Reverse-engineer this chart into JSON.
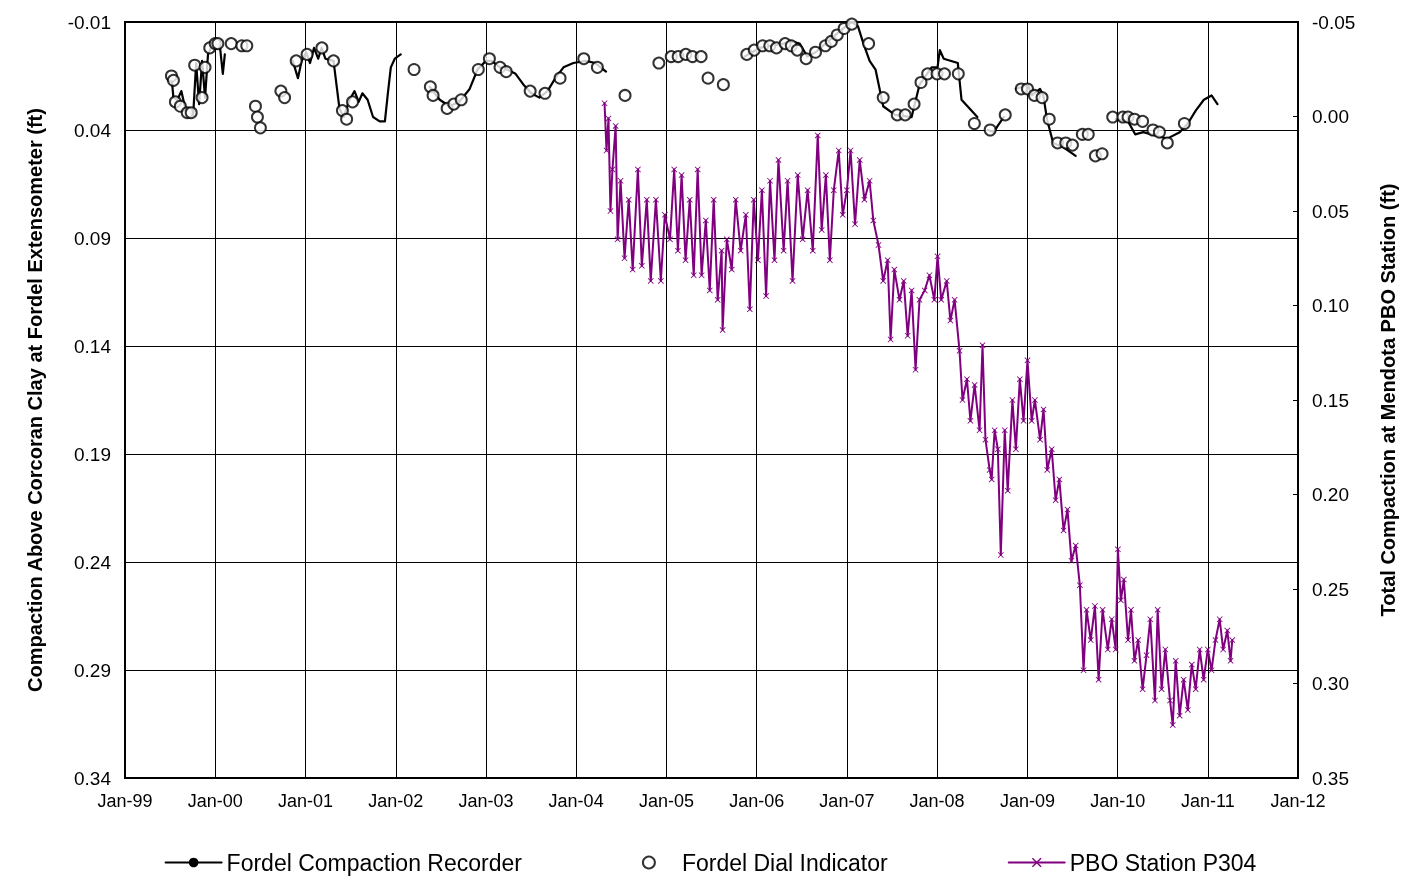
{
  "chart_data": {
    "type": "line",
    "ylabel": "Compaction Above Corcoran Clay at Fordel Extensometer (ft)",
    "y2label": "Total Compaction at Mendota PBO Station (ft)",
    "xlim": [
      "1999-01",
      "2012-01"
    ],
    "xticks": [
      {
        "value": "1999-01",
        "label": "Jan-99"
      },
      {
        "value": "2000-01",
        "label": "Jan-00"
      },
      {
        "value": "2001-01",
        "label": "Jan-01"
      },
      {
        "value": "2002-01",
        "label": "Jan-02"
      },
      {
        "value": "2003-01",
        "label": "Jan-03"
      },
      {
        "value": "2004-01",
        "label": "Jan-04"
      },
      {
        "value": "2005-01",
        "label": "Jan-05"
      },
      {
        "value": "2006-01",
        "label": "Jan-06"
      },
      {
        "value": "2007-01",
        "label": "Jan-07"
      },
      {
        "value": "2008-01",
        "label": "Jan-08"
      },
      {
        "value": "2009-01",
        "label": "Jan-09"
      },
      {
        "value": "2010-01",
        "label": "Jan-10"
      },
      {
        "value": "2011-01",
        "label": "Jan-11"
      },
      {
        "value": "2012-01",
        "label": "Jan-12"
      }
    ],
    "ylim": [
      0.34,
      -0.01
    ],
    "yticks": [
      -0.01,
      0.04,
      0.09,
      0.14,
      0.19,
      0.24,
      0.29,
      0.34
    ],
    "y2lim": [
      0.35,
      -0.05
    ],
    "y2ticks": [
      -0.05,
      {
        "value": 0,
        "label": "0.00"
      },
      0.05,
      {
        "value": 0.1,
        "label": "0.10"
      },
      0.15,
      {
        "value": 0.2,
        "label": "0.20"
      },
      0.25,
      {
        "value": 0.3,
        "label": "0.30"
      },
      0.35
    ],
    "grid": true,
    "legend": "bottom",
    "series": [
      {
        "name": "Fordel Compaction Recorder",
        "marker": "none",
        "color": "#000000",
        "x": [
          "1999-07-08",
          "1999-07-16",
          "1999-08-01",
          "1999-08-17",
          "1999-09-02",
          "1999-09-22",
          "1999-10-04",
          "1999-10-16",
          "1999-10-28",
          "1999-11-09",
          "1999-11-21",
          "1999-12-03",
          "1999-12-19",
          "2000-01-04",
          "2000-01-20",
          "2000-02-01",
          "2000-02-09",
          "2000-06-01",
          "2000-11-10",
          "2000-12-01",
          "2000-12-16",
          "2001-01-03",
          "2001-01-19",
          "2001-02-04",
          "2001-02-21",
          "2001-03-07",
          "2001-03-22",
          "2001-04-24",
          "2001-05-18",
          "2001-06-04",
          "2001-06-28",
          "2001-07-18",
          "2001-08-04",
          "2001-08-19",
          "2001-09-09",
          "2001-10-01",
          "2001-10-28",
          "2001-11-18",
          "2001-12-01",
          "2001-12-12",
          "2001-12-28",
          "2002-01-21",
          "2002-03-01",
          "2002-05-18",
          "2002-06-28",
          "2002-08-06",
          "2002-09-15",
          "2002-10-27",
          "2002-11-28",
          "2003-01-01",
          "2003-01-24",
          "2003-02-27",
          "2003-03-28",
          "2003-05-01",
          "2003-06-02",
          "2003-07-04",
          "2003-08-05",
          "2003-09-07",
          "2003-10-09",
          "2003-11-11",
          "2003-12-21",
          "2004-02-08",
          "2004-03-19",
          "2004-05-01",
          "2005-01-01",
          "2005-11-13",
          "2006-01-13",
          "2006-03-01",
          "2006-04-19",
          "2006-05-21",
          "2006-06-24",
          "2006-07-25",
          "2006-08-27",
          "2006-10-06",
          "2006-11-16",
          "2006-12-27",
          "2007-01-21",
          "2007-02-15",
          "2007-03-09",
          "2007-04-03",
          "2007-04-27",
          "2007-05-28",
          "2007-07-15",
          "2007-09-20",
          "2007-10-22",
          "2007-12-10",
          "2008-01-03",
          "2008-01-12",
          "2008-01-28",
          "2008-03-25",
          "2008-04-09",
          "2008-05-19",
          "2008-06-12",
          "2008-07-10",
          "2008-07-24",
          "2008-08-18",
          "2008-09-03",
          "2008-09-27",
          "2008-10-20",
          "2008-11-15",
          "2009-01-03",
          "2009-01-18",
          "2009-02-21",
          "2009-03-06",
          "2009-03-21",
          "2009-04-15",
          "2009-05-27",
          "2009-07-15",
          "2009-10-01",
          "2009-12-24",
          "2010-02-12",
          "2010-03-13",
          "2010-04-15",
          "2010-05-18",
          "2010-06-19",
          "2010-07-21",
          "2010-09-09",
          "2010-10-12",
          "2010-11-13",
          "2010-12-16",
          "2011-01-16",
          "2011-02-09"
        ],
        "values": [
          0.015,
          0.025,
          0.026,
          0.022,
          0.03,
          0.032,
          0.033,
          0.009,
          0.028,
          0.008,
          0.025,
          0.005,
          0.001,
          0.0,
          0.001,
          0.014,
          0.005,
          null,
          0.008,
          0.016,
          0.008,
          0.004,
          0.009,
          0.002,
          0.007,
          0.002,
          0.007,
          0.008,
          0.03,
          0.034,
          0.026,
          0.022,
          0.027,
          0.023,
          0.026,
          0.034,
          0.036,
          0.036,
          0.022,
          0.011,
          0.007,
          0.005,
          null,
          0.02,
          0.026,
          0.029,
          0.027,
          0.021,
          0.012,
          0.008,
          0.008,
          0.011,
          0.012,
          0.014,
          0.019,
          0.023,
          0.025,
          0.022,
          0.016,
          0.011,
          0.009,
          0.008,
          0.009,
          0.013,
          null,
          0.006,
          0.002,
          0.001,
          0.0,
          -0.001,
          0.0,
          0.006,
          0.004,
          0.0,
          -0.004,
          -0.008,
          -0.01,
          -0.008,
          0.0,
          0.008,
          0.012,
          0.029,
          0.033,
          0.034,
          0.019,
          0.011,
          0.011,
          0.003,
          0.007,
          0.009,
          0.026,
          0.031,
          0.034,
          null,
          0.04,
          0.041,
          0.038,
          0.034,
          null,
          0.021,
          0.019,
          0.024,
          0.021,
          0.024,
          0.035,
          0.046,
          0.048,
          0.052,
          null,
          0.035,
          0.036,
          0.042,
          0.041,
          0.042,
          0.043,
          0.044,
          0.041,
          0.037,
          0.031,
          0.026,
          0.024,
          0.028
        ]
      },
      {
        "name": "Fordel Dial Indicator",
        "type": "scatter",
        "marker": "circle",
        "color": "#000000",
        "x": [
          "1999-07-08",
          "1999-07-16",
          "1999-07-24",
          "1999-08-13",
          "1999-09-10",
          "1999-09-26",
          "1999-10-10",
          "1999-11-09",
          "1999-11-21",
          "1999-12-10",
          "2000-01-01",
          "2000-01-12",
          "2000-03-06",
          "2000-04-18",
          "2000-05-08",
          "2000-06-12",
          "2000-06-20",
          "2000-07-02",
          "2000-09-23",
          "2000-10-08",
          "2000-11-24",
          "2001-01-07",
          "2001-03-08",
          "2001-04-24",
          "2001-05-30",
          "2001-06-16",
          "2001-07-10",
          "2002-03-16",
          "2002-05-21",
          "2002-06-01",
          "2002-07-28",
          "2002-08-24",
          "2002-09-23",
          "2002-12-01",
          "2003-01-15",
          "2003-02-27",
          "2003-03-24",
          "2003-06-29",
          "2003-08-28",
          "2003-10-28",
          "2004-02-01",
          "2004-03-27",
          "2004-07-17",
          "2004-12-01",
          "2005-01-20",
          "2005-02-17",
          "2005-03-20",
          "2005-04-16",
          "2005-05-21",
          "2005-06-18",
          "2005-08-19",
          "2005-11-22",
          "2005-12-22",
          "2006-01-25",
          "2006-02-23",
          "2006-03-22",
          "2006-04-26",
          "2006-05-21",
          "2006-06-14",
          "2006-07-20",
          "2006-08-27",
          "2006-10-06",
          "2006-10-30",
          "2006-11-23",
          "2006-12-21",
          "2007-01-21",
          "2007-03-30",
          "2007-05-28",
          "2007-07-24",
          "2007-08-25",
          "2007-09-30",
          "2007-10-28",
          "2007-11-24",
          "2008-01-01",
          "2008-01-31",
          "2008-03-27",
          "2008-05-31",
          "2008-08-03",
          "2008-10-03",
          "2008-12-07",
          "2009-01-01",
          "2009-01-29",
          "2009-03-01",
          "2009-03-30",
          "2009-05-03",
          "2009-06-05",
          "2009-07-02",
          "2009-08-11",
          "2009-09-04",
          "2009-10-03",
          "2009-10-30",
          "2009-12-12",
          "2010-01-22",
          "2010-02-12",
          "2010-03-10",
          "2010-04-12",
          "2010-05-24",
          "2010-06-19",
          "2010-07-21",
          "2010-09-28"
        ],
        "values": [
          0.015,
          0.017,
          0.027,
          0.029,
          0.032,
          0.032,
          0.01,
          0.025,
          0.011,
          0.002,
          0.0,
          0.0,
          0.0,
          0.001,
          0.001,
          0.029,
          0.034,
          0.039,
          0.022,
          0.025,
          0.008,
          0.005,
          0.002,
          0.008,
          0.031,
          0.035,
          0.027,
          0.012,
          0.02,
          0.024,
          0.03,
          0.028,
          0.026,
          0.012,
          0.007,
          0.011,
          0.013,
          0.022,
          0.023,
          0.016,
          0.007,
          0.011,
          0.024,
          0.009,
          0.006,
          0.006,
          0.005,
          0.006,
          0.006,
          0.016,
          0.019,
          0.005,
          0.003,
          0.001,
          0.001,
          0.002,
          0.0,
          0.001,
          0.003,
          0.007,
          0.004,
          0.001,
          -0.001,
          -0.004,
          -0.007,
          -0.009,
          0.0,
          0.025,
          0.033,
          0.033,
          0.028,
          0.018,
          0.014,
          0.014,
          0.014,
          0.014,
          0.037,
          0.04,
          0.033,
          0.021,
          0.021,
          0.024,
          0.025,
          0.035,
          0.046,
          0.046,
          0.047,
          0.042,
          0.042,
          0.052,
          0.051,
          0.034,
          0.034,
          0.034,
          0.035,
          0.036,
          0.04,
          0.041,
          0.046,
          0.037
        ]
      },
      {
        "name": "PBO Station P304",
        "marker": "cross",
        "color": "#800080",
        "axis": "y2",
        "x": [
          "2004-04-25",
          "2004-05-03",
          "2004-05-11",
          "2004-05-19",
          "2004-05-27",
          "2004-06-09",
          "2004-06-17",
          "2004-06-29",
          "2004-07-15",
          "2004-08-01",
          "2004-08-17",
          "2004-09-07",
          "2004-09-23",
          "2004-10-13",
          "2004-10-29",
          "2004-11-19",
          "2004-12-09",
          "2004-12-25",
          "2005-01-15",
          "2005-02-01",
          "2005-02-16",
          "2005-03-03",
          "2005-03-19",
          "2005-04-05",
          "2005-04-21",
          "2005-05-07",
          "2005-05-23",
          "2005-06-09",
          "2005-06-25",
          "2005-07-11",
          "2005-07-27",
          "2005-08-12",
          "2005-08-16",
          "2005-09-02",
          "2005-09-22",
          "2005-10-08",
          "2005-10-28",
          "2005-11-18",
          "2005-12-04",
          "2005-12-20",
          "2006-01-06",
          "2006-01-22",
          "2006-02-08",
          "2006-02-24",
          "2006-03-14",
          "2006-03-30",
          "2006-04-20",
          "2006-05-06",
          "2006-05-26",
          "2006-06-16",
          "2006-07-06",
          "2006-07-26",
          "2006-08-16",
          "2006-09-05",
          "2006-09-21",
          "2006-10-08",
          "2006-10-24",
          "2006-11-09",
          "2006-11-29",
          "2006-12-15",
          "2007-01-01",
          "2007-01-16",
          "2007-02-03",
          "2007-02-22",
          "2007-03-13",
          "2007-04-03",
          "2007-04-18",
          "2007-05-09",
          "2007-05-28",
          "2007-06-15",
          "2007-06-27",
          "2007-07-12",
          "2007-08-02",
          "2007-08-19",
          "2007-09-04",
          "2007-09-20",
          "2007-10-06",
          "2007-10-22",
          "2007-11-12",
          "2007-12-01",
          "2007-12-21",
          "2008-01-03",
          "2008-01-18",
          "2008-02-09",
          "2008-02-24",
          "2008-03-12",
          "2008-04-01",
          "2008-04-13",
          "2008-05-01",
          "2008-05-15",
          "2008-06-01",
          "2008-06-21",
          "2008-07-03",
          "2008-07-15",
          "2008-08-01",
          "2008-08-09",
          "2008-08-21",
          "2008-09-03",
          "2008-09-15",
          "2008-10-01",
          "2008-10-13",
          "2008-11-01",
          "2008-11-15",
          "2008-12-01",
          "2008-12-16",
          "2009-01-01",
          "2009-01-18",
          "2009-01-31",
          "2009-02-21",
          "2009-03-07",
          "2009-03-22",
          "2009-04-09",
          "2009-04-25",
          "2009-05-10",
          "2009-05-27",
          "2009-06-12",
          "2009-06-28",
          "2009-07-15",
          "2009-08-01",
          "2009-08-16",
          "2009-08-28",
          "2009-09-14",
          "2009-10-01",
          "2009-10-16",
          "2009-11-01",
          "2009-11-22",
          "2009-12-08",
          "2009-12-24",
          "2010-01-02",
          "2010-01-14",
          "2010-01-26",
          "2010-02-12",
          "2010-02-24",
          "2010-03-10",
          "2010-03-25",
          "2010-04-12",
          "2010-04-28",
          "2010-05-13",
          "2010-06-01",
          "2010-06-12",
          "2010-06-28",
          "2010-07-13",
          "2010-08-01",
          "2010-08-12",
          "2010-08-24",
          "2010-09-09",
          "2010-09-25",
          "2010-10-12",
          "2010-10-28",
          "2010-11-13",
          "2010-11-29",
          "2010-12-15",
          "2011-01-01",
          "2011-01-16",
          "2011-02-01",
          "2011-02-18",
          "2011-03-04",
          "2011-03-21",
          "2011-04-03",
          "2011-04-10"
        ],
        "values": [
          -0.007,
          0.018,
          0.001,
          0.05,
          0.028,
          0.005,
          0.065,
          0.034,
          0.075,
          0.044,
          0.081,
          0.028,
          0.079,
          0.044,
          0.087,
          0.044,
          0.087,
          0.052,
          0.065,
          0.028,
          0.071,
          0.031,
          0.076,
          0.044,
          0.084,
          0.028,
          0.084,
          0.055,
          0.092,
          0.044,
          0.097,
          0.071,
          0.113,
          0.065,
          0.081,
          0.044,
          0.071,
          0.052,
          0.102,
          0.044,
          0.076,
          0.039,
          0.095,
          0.034,
          0.076,
          0.023,
          0.071,
          0.034,
          0.087,
          0.031,
          0.065,
          0.039,
          0.071,
          0.01,
          0.06,
          0.031,
          0.076,
          0.039,
          0.018,
          0.052,
          0.039,
          0.018,
          0.057,
          0.023,
          0.044,
          0.034,
          0.055,
          0.068,
          0.087,
          0.076,
          0.118,
          0.081,
          0.097,
          0.087,
          0.116,
          0.092,
          0.134,
          0.097,
          0.092,
          0.084,
          0.097,
          0.074,
          0.097,
          0.087,
          0.108,
          0.097,
          0.124,
          0.15,
          0.139,
          0.161,
          0.142,
          0.166,
          0.121,
          0.171,
          0.187,
          0.192,
          0.166,
          0.176,
          0.232,
          0.166,
          0.198,
          0.15,
          0.176,
          0.139,
          0.161,
          0.129,
          0.161,
          0.15,
          0.171,
          0.155,
          0.187,
          0.176,
          0.203,
          0.192,
          0.219,
          0.208,
          0.235,
          0.227,
          0.248,
          0.293,
          0.261,
          0.277,
          0.259,
          0.298,
          0.261,
          0.282,
          0.266,
          0.282,
          0.229,
          0.256,
          0.245,
          0.277,
          0.261,
          0.288,
          0.277,
          0.303,
          0.285,
          0.266,
          0.309,
          0.261,
          0.303,
          0.282,
          0.309,
          0.322,
          0.288,
          0.317,
          0.298,
          0.314,
          0.29,
          0.303,
          0.282,
          0.298,
          0.282,
          0.293,
          0.277,
          0.266,
          0.282,
          0.272,
          0.288,
          0.277
        ]
      }
    ]
  }
}
